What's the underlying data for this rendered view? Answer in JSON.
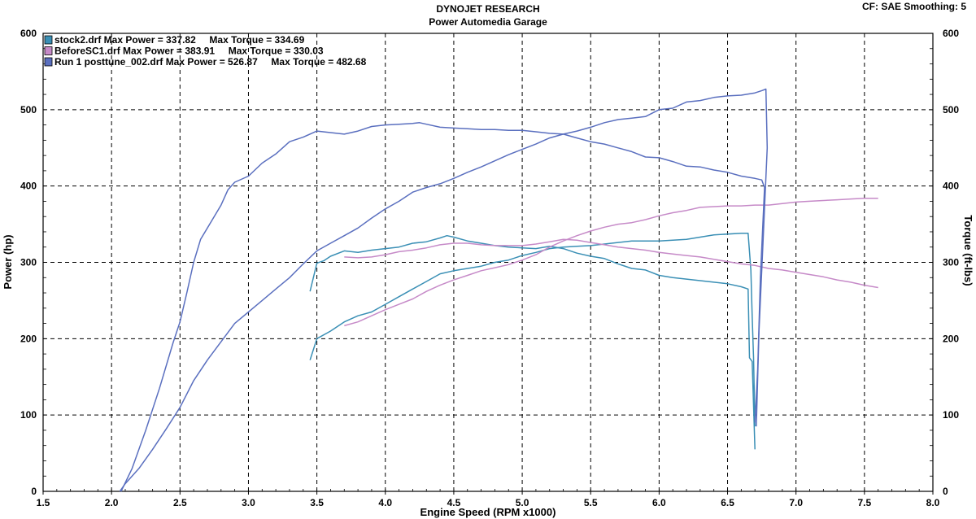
{
  "header": {
    "title": "DYNOJET RESEARCH",
    "subtitle": "Power Automedia Garage",
    "cf_label": "CF: SAE  Smoothing: 5"
  },
  "chart_data": {
    "type": "line",
    "xlabel": "Engine Speed (RPM x1000)",
    "ylabel": "Power (hp)",
    "y2label": "Torque (ft-lbs)",
    "xlim": [
      1.5,
      8.0
    ],
    "ylim": [
      0,
      600
    ],
    "y2lim": [
      0,
      600
    ],
    "xticks": [
      "1.5",
      "2.0",
      "2.5",
      "3.0",
      "3.5",
      "4.0",
      "4.5",
      "5.0",
      "5.5",
      "6.0",
      "6.5",
      "7.0",
      "7.5",
      "8.0"
    ],
    "yticks": [
      "0",
      "100",
      "200",
      "300",
      "400",
      "500",
      "600"
    ],
    "y2ticks": [
      "0",
      "100",
      "200",
      "300",
      "400",
      "500",
      "600"
    ],
    "grid": true,
    "legend_placement": "top-left",
    "series": [
      {
        "name": "stock2.drf",
        "legend": "stock2.drf Max Power = 337.82     Max Torque = 334.69",
        "color": "#3a8fb5",
        "power": [
          [
            3.45,
            172
          ],
          [
            3.5,
            200
          ],
          [
            3.6,
            210
          ],
          [
            3.7,
            222
          ],
          [
            3.8,
            230
          ],
          [
            3.9,
            235
          ],
          [
            4.0,
            245
          ],
          [
            4.1,
            255
          ],
          [
            4.2,
            265
          ],
          [
            4.3,
            275
          ],
          [
            4.4,
            285
          ],
          [
            4.5,
            289
          ],
          [
            4.6,
            292
          ],
          [
            4.7,
            295
          ],
          [
            4.8,
            300
          ],
          [
            4.9,
            303
          ],
          [
            5.0,
            309
          ],
          [
            5.1,
            313
          ],
          [
            5.2,
            318
          ],
          [
            5.3,
            320
          ],
          [
            5.4,
            321
          ],
          [
            5.5,
            322
          ],
          [
            5.6,
            324
          ],
          [
            5.8,
            328
          ],
          [
            6.0,
            328
          ],
          [
            6.2,
            330
          ],
          [
            6.4,
            336
          ],
          [
            6.6,
            338
          ],
          [
            6.65,
            338
          ],
          [
            6.67,
            290
          ],
          [
            6.68,
            230
          ],
          [
            6.69,
            175
          ],
          [
            6.7,
            85
          ]
        ],
        "torque": [
          [
            3.45,
            262
          ],
          [
            3.5,
            299
          ],
          [
            3.55,
            302
          ],
          [
            3.6,
            308
          ],
          [
            3.7,
            315
          ],
          [
            3.8,
            313
          ],
          [
            3.9,
            316
          ],
          [
            4.0,
            318
          ],
          [
            4.1,
            320
          ],
          [
            4.2,
            325
          ],
          [
            4.3,
            327
          ],
          [
            4.4,
            332
          ],
          [
            4.45,
            335
          ],
          [
            4.5,
            333
          ],
          [
            4.6,
            328
          ],
          [
            4.7,
            325
          ],
          [
            4.8,
            322
          ],
          [
            4.9,
            320
          ],
          [
            5.0,
            319
          ],
          [
            5.1,
            318
          ],
          [
            5.2,
            321
          ],
          [
            5.3,
            318
          ],
          [
            5.4,
            312
          ],
          [
            5.5,
            308
          ],
          [
            5.6,
            305
          ],
          [
            5.7,
            298
          ],
          [
            5.8,
            292
          ],
          [
            5.9,
            290
          ],
          [
            6.0,
            283
          ],
          [
            6.1,
            280
          ],
          [
            6.2,
            278
          ],
          [
            6.3,
            276
          ],
          [
            6.4,
            274
          ],
          [
            6.5,
            272
          ],
          [
            6.6,
            268
          ],
          [
            6.65,
            265
          ],
          [
            6.66,
            175
          ],
          [
            6.68,
            170
          ],
          [
            6.7,
            55
          ]
        ]
      },
      {
        "name": "BeforeSC1.drf",
        "legend": "BeforeSC1.drf Max Power = 383.91     Max Torque = 330.03",
        "color": "#c68ac8",
        "power": [
          [
            3.7,
            217
          ],
          [
            3.8,
            222
          ],
          [
            3.9,
            230
          ],
          [
            4.0,
            238
          ],
          [
            4.1,
            245
          ],
          [
            4.2,
            252
          ],
          [
            4.3,
            262
          ],
          [
            4.4,
            270
          ],
          [
            4.5,
            277
          ],
          [
            4.6,
            283
          ],
          [
            4.7,
            289
          ],
          [
            4.8,
            293
          ],
          [
            4.9,
            297
          ],
          [
            5.0,
            303
          ],
          [
            5.1,
            310
          ],
          [
            5.2,
            320
          ],
          [
            5.3,
            328
          ],
          [
            5.4,
            335
          ],
          [
            5.5,
            341
          ],
          [
            5.6,
            346
          ],
          [
            5.7,
            350
          ],
          [
            5.8,
            352
          ],
          [
            5.9,
            356
          ],
          [
            6.0,
            361
          ],
          [
            6.1,
            365
          ],
          [
            6.2,
            368
          ],
          [
            6.3,
            372
          ],
          [
            6.4,
            373
          ],
          [
            6.5,
            374
          ],
          [
            6.6,
            374
          ],
          [
            6.7,
            375
          ],
          [
            6.8,
            375
          ],
          [
            6.9,
            377
          ],
          [
            7.0,
            379
          ],
          [
            7.1,
            380
          ],
          [
            7.2,
            381
          ],
          [
            7.3,
            382
          ],
          [
            7.4,
            383
          ],
          [
            7.5,
            384
          ],
          [
            7.6,
            384
          ]
        ],
        "torque": [
          [
            3.7,
            307
          ],
          [
            3.8,
            306
          ],
          [
            3.9,
            307
          ],
          [
            4.0,
            310
          ],
          [
            4.1,
            314
          ],
          [
            4.2,
            316
          ],
          [
            4.3,
            319
          ],
          [
            4.4,
            323
          ],
          [
            4.5,
            325
          ],
          [
            4.6,
            325
          ],
          [
            4.7,
            323
          ],
          [
            4.8,
            322
          ],
          [
            4.9,
            322
          ],
          [
            5.0,
            322
          ],
          [
            5.1,
            324
          ],
          [
            5.2,
            327
          ],
          [
            5.3,
            330
          ],
          [
            5.4,
            329
          ],
          [
            5.5,
            326
          ],
          [
            5.6,
            323
          ],
          [
            5.7,
            320
          ],
          [
            5.8,
            318
          ],
          [
            5.9,
            316
          ],
          [
            6.0,
            313
          ],
          [
            6.1,
            311
          ],
          [
            6.2,
            309
          ],
          [
            6.3,
            307
          ],
          [
            6.4,
            304
          ],
          [
            6.5,
            301
          ],
          [
            6.6,
            298
          ],
          [
            6.7,
            296
          ],
          [
            6.8,
            292
          ],
          [
            6.9,
            290
          ],
          [
            7.0,
            287
          ],
          [
            7.1,
            284
          ],
          [
            7.2,
            281
          ],
          [
            7.3,
            277
          ],
          [
            7.4,
            274
          ],
          [
            7.5,
            270
          ],
          [
            7.6,
            267
          ]
        ]
      },
      {
        "name": "Run 1 posttune_002.drf",
        "legend": "Run 1 posttune_002.drf Max Power = 526.87     Max Torque = 482.68",
        "color": "#5a6fbf",
        "power": [
          [
            2.06,
            0
          ],
          [
            2.1,
            10
          ],
          [
            2.2,
            30
          ],
          [
            2.3,
            55
          ],
          [
            2.4,
            82
          ],
          [
            2.5,
            110
          ],
          [
            2.6,
            145
          ],
          [
            2.7,
            172
          ],
          [
            2.8,
            196
          ],
          [
            2.9,
            220
          ],
          [
            3.0,
            235
          ],
          [
            3.1,
            250
          ],
          [
            3.2,
            265
          ],
          [
            3.3,
            280
          ],
          [
            3.4,
            298
          ],
          [
            3.5,
            315
          ],
          [
            3.6,
            325
          ],
          [
            3.7,
            335
          ],
          [
            3.8,
            345
          ],
          [
            3.9,
            358
          ],
          [
            4.0,
            370
          ],
          [
            4.1,
            380
          ],
          [
            4.2,
            392
          ],
          [
            4.3,
            398
          ],
          [
            4.4,
            403
          ],
          [
            4.5,
            410
          ],
          [
            4.6,
            418
          ],
          [
            4.7,
            425
          ],
          [
            4.8,
            433
          ],
          [
            4.9,
            441
          ],
          [
            5.0,
            448
          ],
          [
            5.1,
            455
          ],
          [
            5.2,
            463
          ],
          [
            5.3,
            468
          ],
          [
            5.4,
            472
          ],
          [
            5.5,
            477
          ],
          [
            5.6,
            483
          ],
          [
            5.7,
            487
          ],
          [
            5.8,
            489
          ],
          [
            5.9,
            491
          ],
          [
            6.0,
            500
          ],
          [
            6.1,
            502
          ],
          [
            6.2,
            510
          ],
          [
            6.3,
            512
          ],
          [
            6.4,
            516
          ],
          [
            6.5,
            518
          ],
          [
            6.6,
            519
          ],
          [
            6.7,
            522
          ],
          [
            6.75,
            525
          ],
          [
            6.78,
            527
          ],
          [
            6.79,
            450
          ],
          [
            6.76,
            330
          ],
          [
            6.73,
            210
          ],
          [
            6.72,
            150
          ],
          [
            6.71,
            85
          ]
        ],
        "torque": [
          [
            2.07,
            0
          ],
          [
            2.15,
            30
          ],
          [
            2.25,
            80
          ],
          [
            2.35,
            135
          ],
          [
            2.45,
            195
          ],
          [
            2.5,
            222
          ],
          [
            2.55,
            260
          ],
          [
            2.6,
            300
          ],
          [
            2.65,
            330
          ],
          [
            2.7,
            345
          ],
          [
            2.8,
            375
          ],
          [
            2.85,
            395
          ],
          [
            2.9,
            405
          ],
          [
            3.0,
            413
          ],
          [
            3.1,
            430
          ],
          [
            3.2,
            442
          ],
          [
            3.3,
            458
          ],
          [
            3.4,
            464
          ],
          [
            3.5,
            472
          ],
          [
            3.6,
            470
          ],
          [
            3.7,
            468
          ],
          [
            3.8,
            472
          ],
          [
            3.9,
            478
          ],
          [
            4.0,
            480
          ],
          [
            4.1,
            481
          ],
          [
            4.2,
            482
          ],
          [
            4.25,
            483
          ],
          [
            4.3,
            481
          ],
          [
            4.4,
            477
          ],
          [
            4.5,
            476
          ],
          [
            4.6,
            475
          ],
          [
            4.7,
            474
          ],
          [
            4.8,
            474
          ],
          [
            4.9,
            473
          ],
          [
            5.0,
            473
          ],
          [
            5.1,
            471
          ],
          [
            5.2,
            469
          ],
          [
            5.3,
            468
          ],
          [
            5.4,
            463
          ],
          [
            5.5,
            458
          ],
          [
            5.6,
            455
          ],
          [
            5.7,
            450
          ],
          [
            5.8,
            445
          ],
          [
            5.9,
            438
          ],
          [
            6.0,
            437
          ],
          [
            6.1,
            432
          ],
          [
            6.2,
            426
          ],
          [
            6.3,
            425
          ],
          [
            6.4,
            421
          ],
          [
            6.5,
            418
          ],
          [
            6.6,
            413
          ],
          [
            6.7,
            410
          ],
          [
            6.75,
            408
          ],
          [
            6.77,
            398
          ],
          [
            6.74,
            280
          ],
          [
            6.72,
            160
          ],
          [
            6.7,
            90
          ]
        ]
      }
    ]
  }
}
